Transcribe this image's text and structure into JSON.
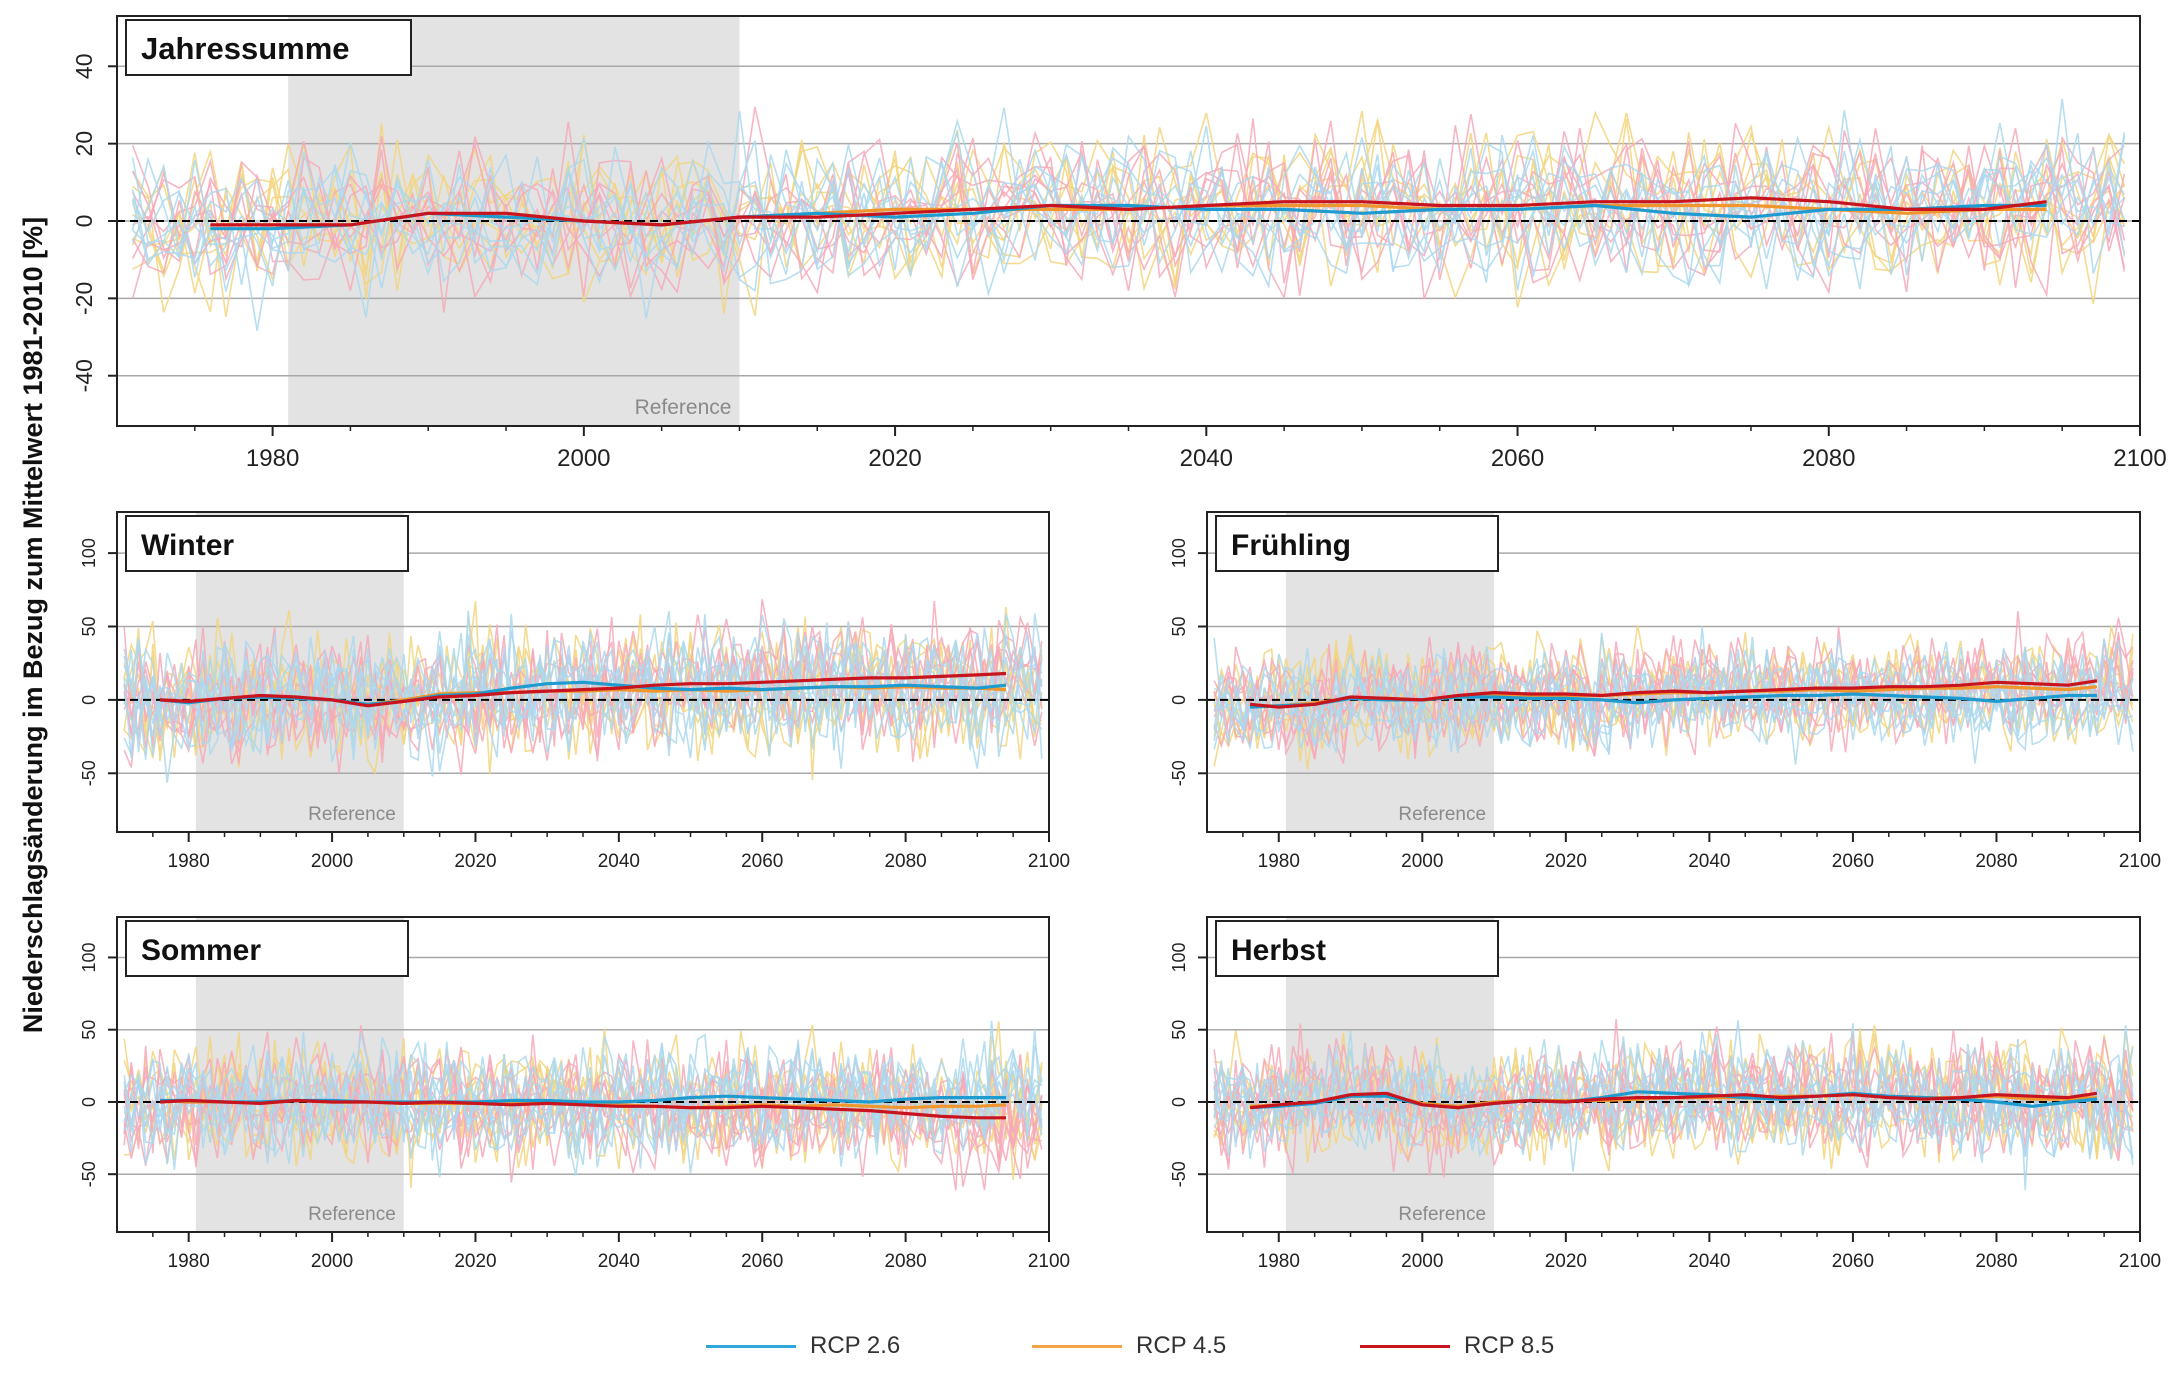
{
  "ylabel": "Niederschlagsänderung im Bezug zum Mittelwert 1981-2010 [%]",
  "reference_label": "Reference",
  "colors": {
    "rcp26_ensemble": "#aad8ee",
    "rcp45_ensemble": "#f2d57e",
    "rcp85_ensemble": "#f6a9b8",
    "rcp26_mean": "#1f9bcf",
    "rcp45_mean": "#f0962e",
    "rcp85_mean": "#c8141e",
    "reference_shade": "#e3e3e3",
    "grid": "#a8a8a8"
  },
  "legend": [
    {
      "label": "RCP 2.6",
      "color": "#2ea8d8"
    },
    {
      "label": "RCP 4.5",
      "color": "#f3a445"
    },
    {
      "label": "RCP 8.5",
      "color": "#c8141e"
    }
  ],
  "chart_data": [
    {
      "type": "line",
      "title": "Jahressumme",
      "xlim": [
        1970,
        2100
      ],
      "ylim": [
        -53,
        53
      ],
      "yticks": [
        -40,
        -20,
        0,
        20,
        40
      ],
      "xticks": [
        1980,
        2000,
        2020,
        2040,
        2060,
        2080,
        2100
      ],
      "reference_period": [
        1981,
        2010
      ],
      "ensemble_amplitude": 14,
      "series": [
        {
          "scenario": "RCP 2.6",
          "x": [
            1976,
            1980,
            1985,
            1990,
            1995,
            2000,
            2005,
            2010,
            2015,
            2020,
            2025,
            2030,
            2035,
            2040,
            2045,
            2050,
            2055,
            2060,
            2065,
            2070,
            2075,
            2080,
            2085,
            2090,
            2094
          ],
          "values": [
            -2,
            -2,
            -1,
            2,
            1,
            0,
            -1,
            1,
            2,
            1,
            2,
            4,
            4,
            3,
            3,
            2,
            3,
            3,
            4,
            2,
            1,
            3,
            3,
            4,
            4
          ]
        },
        {
          "scenario": "RCP 4.5",
          "x": [
            1976,
            1980,
            1985,
            1990,
            1995,
            2000,
            2005,
            2010,
            2015,
            2020,
            2025,
            2030,
            2035,
            2040,
            2045,
            2050,
            2055,
            2060,
            2065,
            2070,
            2075,
            2080,
            2085,
            2090,
            2094
          ],
          "values": [
            -1,
            -1,
            -1,
            2,
            1,
            0,
            -1,
            1,
            2,
            3,
            3,
            3,
            3,
            4,
            4,
            4,
            3,
            3,
            4,
            4,
            4,
            3,
            2,
            3,
            3
          ]
        },
        {
          "scenario": "RCP 8.5",
          "x": [
            1976,
            1980,
            1985,
            1990,
            1995,
            2000,
            2005,
            2010,
            2015,
            2020,
            2025,
            2030,
            2035,
            2040,
            2045,
            2050,
            2055,
            2060,
            2065,
            2070,
            2075,
            2080,
            2085,
            2090,
            2094
          ],
          "values": [
            -1,
            -1,
            -1,
            2,
            2,
            0,
            -1,
            1,
            1,
            2,
            3,
            4,
            3,
            4,
            5,
            5,
            4,
            4,
            5,
            5,
            6,
            5,
            3,
            3,
            5
          ]
        }
      ]
    },
    {
      "type": "line",
      "title": "Winter",
      "xlim": [
        1970,
        2100
      ],
      "ylim": [
        -90,
        128
      ],
      "yticks": [
        -50,
        0,
        50,
        100
      ],
      "xticks": [
        1980,
        2000,
        2020,
        2040,
        2060,
        2080,
        2100
      ],
      "reference_period": [
        1981,
        2010
      ],
      "ensemble_amplitude": 30,
      "series": [
        {
          "scenario": "RCP 2.6",
          "x": [
            1976,
            1980,
            1985,
            1990,
            1995,
            2000,
            2005,
            2010,
            2015,
            2020,
            2025,
            2030,
            2035,
            2040,
            2045,
            2050,
            2055,
            2060,
            2065,
            2070,
            2075,
            2080,
            2085,
            2090,
            2094
          ],
          "values": [
            0,
            -2,
            1,
            2,
            1,
            0,
            -3,
            -1,
            3,
            4,
            8,
            11,
            12,
            10,
            8,
            7,
            8,
            7,
            8,
            9,
            9,
            10,
            9,
            8,
            10
          ]
        },
        {
          "scenario": "RCP 4.5",
          "x": [
            1976,
            1980,
            1985,
            1990,
            1995,
            2000,
            2005,
            2010,
            2015,
            2020,
            2025,
            2030,
            2035,
            2040,
            2045,
            2050,
            2055,
            2060,
            2065,
            2070,
            2075,
            2080,
            2085,
            2090,
            2094
          ],
          "values": [
            0,
            -1,
            1,
            2,
            1,
            0,
            -3,
            0,
            4,
            5,
            5,
            6,
            6,
            7,
            6,
            7,
            6,
            7,
            8,
            9,
            8,
            9,
            8,
            8,
            7
          ]
        },
        {
          "scenario": "RCP 8.5",
          "x": [
            1976,
            1980,
            1985,
            1990,
            1995,
            2000,
            2005,
            2010,
            2015,
            2020,
            2025,
            2030,
            2035,
            2040,
            2045,
            2050,
            2055,
            2060,
            2065,
            2070,
            2075,
            2080,
            2085,
            2090,
            2094
          ],
          "values": [
            0,
            -1,
            1,
            3,
            2,
            0,
            -4,
            -1,
            2,
            3,
            5,
            6,
            7,
            8,
            10,
            11,
            11,
            12,
            13,
            14,
            15,
            15,
            16,
            17,
            18
          ]
        }
      ]
    },
    {
      "type": "line",
      "title": "Frühling",
      "xlim": [
        1970,
        2100
      ],
      "ylim": [
        -90,
        128
      ],
      "yticks": [
        -50,
        0,
        50,
        100
      ],
      "xticks": [
        1980,
        2000,
        2020,
        2040,
        2060,
        2080,
        2100
      ],
      "reference_period": [
        1981,
        2010
      ],
      "ensemble_amplitude": 25,
      "series": [
        {
          "scenario": "RCP 2.6",
          "x": [
            1976,
            1980,
            1985,
            1990,
            1995,
            2000,
            2005,
            2010,
            2015,
            2020,
            2025,
            2030,
            2035,
            2040,
            2045,
            2050,
            2055,
            2060,
            2065,
            2070,
            2075,
            2080,
            2085,
            2090,
            2094
          ],
          "values": [
            -5,
            -4,
            -3,
            1,
            0,
            0,
            2,
            2,
            1,
            1,
            0,
            -2,
            0,
            1,
            2,
            3,
            3,
            4,
            3,
            2,
            1,
            -1,
            1,
            3,
            3
          ]
        },
        {
          "scenario": "RCP 4.5",
          "x": [
            1976,
            1980,
            1985,
            1990,
            1995,
            2000,
            2005,
            2010,
            2015,
            2020,
            2025,
            2030,
            2035,
            2040,
            2045,
            2050,
            2055,
            2060,
            2065,
            2070,
            2075,
            2080,
            2085,
            2090,
            2094
          ],
          "values": [
            -4,
            -4,
            -2,
            1,
            1,
            0,
            2,
            3,
            3,
            3,
            3,
            4,
            5,
            5,
            6,
            6,
            7,
            6,
            7,
            8,
            8,
            9,
            8,
            7,
            9
          ]
        },
        {
          "scenario": "RCP 8.5",
          "x": [
            1976,
            1980,
            1985,
            1990,
            1995,
            2000,
            2005,
            2010,
            2015,
            2020,
            2025,
            2030,
            2035,
            2040,
            2045,
            2050,
            2055,
            2060,
            2065,
            2070,
            2075,
            2080,
            2085,
            2090,
            2094
          ],
          "values": [
            -3,
            -5,
            -3,
            2,
            1,
            0,
            3,
            5,
            4,
            4,
            3,
            5,
            6,
            5,
            6,
            7,
            8,
            8,
            9,
            9,
            10,
            12,
            11,
            10,
            13
          ]
        }
      ]
    },
    {
      "type": "line",
      "title": "Sommer",
      "xlim": [
        1970,
        2100
      ],
      "ylim": [
        -90,
        128
      ],
      "yticks": [
        -50,
        0,
        50,
        100
      ],
      "xticks": [
        1980,
        2000,
        2020,
        2040,
        2060,
        2080,
        2100
      ],
      "reference_period": [
        1981,
        2010
      ],
      "ensemble_amplitude": 28,
      "series": [
        {
          "scenario": "RCP 2.6",
          "x": [
            1976,
            1980,
            1985,
            1990,
            1995,
            2000,
            2005,
            2010,
            2015,
            2020,
            2025,
            2030,
            2035,
            2040,
            2045,
            2050,
            2055,
            2060,
            2065,
            2070,
            2075,
            2080,
            2085,
            2090,
            2094
          ],
          "values": [
            1,
            1,
            0,
            0,
            1,
            1,
            0,
            0,
            0,
            0,
            1,
            1,
            0,
            0,
            1,
            3,
            4,
            3,
            2,
            1,
            0,
            2,
            3,
            3,
            3
          ]
        },
        {
          "scenario": "RCP 4.5",
          "x": [
            1976,
            1980,
            1985,
            1990,
            1995,
            2000,
            2005,
            2010,
            2015,
            2020,
            2025,
            2030,
            2035,
            2040,
            2045,
            2050,
            2055,
            2060,
            2065,
            2070,
            2075,
            2080,
            2085,
            2090,
            2094
          ],
          "values": [
            1,
            0,
            0,
            -1,
            1,
            0,
            0,
            -1,
            -1,
            -1,
            0,
            0,
            -1,
            -2,
            -3,
            -4,
            -3,
            -2,
            -3,
            -2,
            -3,
            -4,
            -3,
            -3,
            -2
          ]
        },
        {
          "scenario": "RCP 8.5",
          "x": [
            1976,
            1980,
            1985,
            1990,
            1995,
            2000,
            2005,
            2010,
            2015,
            2020,
            2025,
            2030,
            2035,
            2040,
            2045,
            2050,
            2055,
            2060,
            2065,
            2070,
            2075,
            2080,
            2085,
            2090,
            2094
          ],
          "values": [
            0,
            1,
            0,
            -1,
            1,
            0,
            0,
            -1,
            0,
            -1,
            -2,
            -1,
            -2,
            -3,
            -3,
            -4,
            -4,
            -3,
            -4,
            -5,
            -6,
            -8,
            -10,
            -11,
            -11
          ]
        }
      ]
    },
    {
      "type": "line",
      "title": "Herbst",
      "xlim": [
        1970,
        2100
      ],
      "ylim": [
        -90,
        128
      ],
      "yticks": [
        -50,
        0,
        50,
        100
      ],
      "xticks": [
        1980,
        2000,
        2020,
        2040,
        2060,
        2080,
        2100
      ],
      "reference_period": [
        1981,
        2010
      ],
      "ensemble_amplitude": 28,
      "series": [
        {
          "scenario": "RCP 2.6",
          "x": [
            1976,
            1980,
            1985,
            1990,
            1995,
            2000,
            2005,
            2010,
            2015,
            2020,
            2025,
            2030,
            2035,
            2040,
            2045,
            2050,
            2055,
            2060,
            2065,
            2070,
            2075,
            2080,
            2085,
            2090,
            2094
          ],
          "values": [
            -4,
            -3,
            -1,
            4,
            4,
            -2,
            -4,
            -1,
            1,
            0,
            3,
            7,
            6,
            5,
            3,
            2,
            4,
            6,
            4,
            3,
            2,
            0,
            -3,
            0,
            2
          ]
        },
        {
          "scenario": "RCP 4.5",
          "x": [
            1976,
            1980,
            1985,
            1990,
            1995,
            2000,
            2005,
            2010,
            2015,
            2020,
            2025,
            2030,
            2035,
            2040,
            2045,
            2050,
            2055,
            2060,
            2065,
            2070,
            2075,
            2080,
            2085,
            2090,
            2094
          ],
          "values": [
            -3,
            -2,
            0,
            4,
            5,
            -1,
            -3,
            0,
            1,
            1,
            1,
            2,
            3,
            3,
            3,
            4,
            4,
            5,
            4,
            3,
            3,
            4,
            2,
            2,
            3
          ]
        },
        {
          "scenario": "RCP 8.5",
          "x": [
            1976,
            1980,
            1985,
            1990,
            1995,
            2000,
            2005,
            2010,
            2015,
            2020,
            2025,
            2030,
            2035,
            2040,
            2045,
            2050,
            2055,
            2060,
            2065,
            2070,
            2075,
            2080,
            2085,
            2090,
            2094
          ],
          "values": [
            -4,
            -2,
            0,
            5,
            6,
            -2,
            -4,
            -1,
            1,
            0,
            2,
            3,
            3,
            4,
            5,
            3,
            4,
            5,
            3,
            2,
            3,
            5,
            4,
            3,
            6
          ]
        }
      ]
    }
  ]
}
